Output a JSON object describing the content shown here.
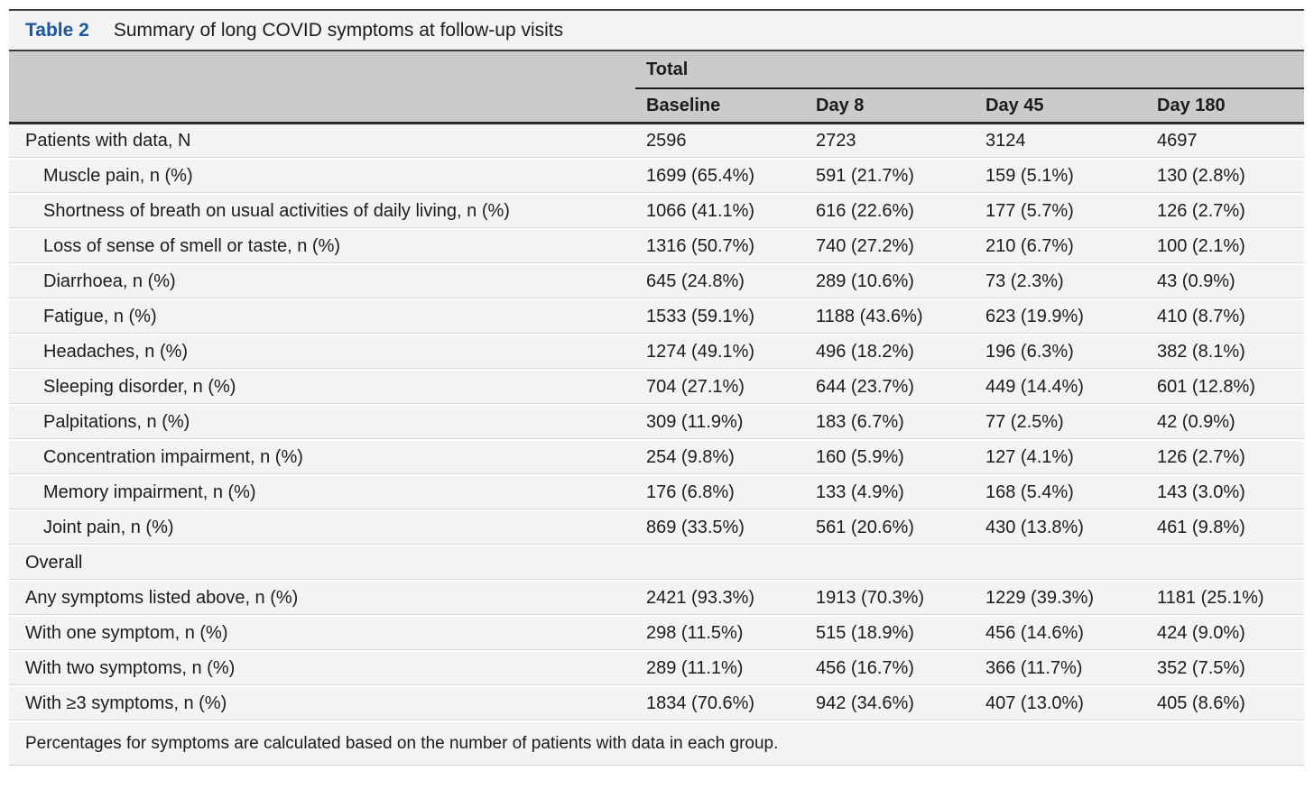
{
  "table": {
    "caption": {
      "label": "Table 2",
      "title": "Summary of long COVID symptoms at follow-up visits"
    },
    "header": {
      "group_label": "Total",
      "columns": [
        "Baseline",
        "Day 8",
        "Day 45",
        "Day 180"
      ]
    },
    "rows": [
      {
        "label": "Patients with data, N",
        "indent": false,
        "section": false,
        "values": [
          "2596",
          "2723",
          "3124",
          "4697"
        ]
      },
      {
        "label": "Muscle pain, n (%)",
        "indent": true,
        "section": false,
        "values": [
          "1699 (65.4%)",
          "591 (21.7%)",
          "159 (5.1%)",
          "130 (2.8%)"
        ]
      },
      {
        "label": "Shortness of breath on usual activities of daily living, n (%)",
        "indent": true,
        "section": false,
        "values": [
          "1066 (41.1%)",
          "616 (22.6%)",
          "177 (5.7%)",
          "126 (2.7%)"
        ]
      },
      {
        "label": "Loss of sense of smell or taste, n (%)",
        "indent": true,
        "section": false,
        "values": [
          "1316 (50.7%)",
          "740 (27.2%)",
          "210 (6.7%)",
          "100 (2.1%)"
        ]
      },
      {
        "label": "Diarrhoea, n (%)",
        "indent": true,
        "section": false,
        "values": [
          "645 (24.8%)",
          "289 (10.6%)",
          "73 (2.3%)",
          "43 (0.9%)"
        ]
      },
      {
        "label": "Fatigue, n (%)",
        "indent": true,
        "section": false,
        "values": [
          "1533 (59.1%)",
          "1188 (43.6%)",
          "623 (19.9%)",
          "410 (8.7%)"
        ]
      },
      {
        "label": "Headaches, n (%)",
        "indent": true,
        "section": false,
        "values": [
          "1274 (49.1%)",
          "496 (18.2%)",
          "196 (6.3%)",
          "382 (8.1%)"
        ]
      },
      {
        "label": "Sleeping disorder, n (%)",
        "indent": true,
        "section": false,
        "values": [
          "704 (27.1%)",
          "644 (23.7%)",
          "449 (14.4%)",
          "601 (12.8%)"
        ]
      },
      {
        "label": "Palpitations, n (%)",
        "indent": true,
        "section": false,
        "values": [
          "309 (11.9%)",
          "183 (6.7%)",
          "77 (2.5%)",
          "42 (0.9%)"
        ]
      },
      {
        "label": "Concentration impairment, n (%)",
        "indent": true,
        "section": false,
        "values": [
          "254 (9.8%)",
          "160 (5.9%)",
          "127 (4.1%)",
          "126 (2.7%)"
        ]
      },
      {
        "label": "Memory impairment, n (%)",
        "indent": true,
        "section": false,
        "values": [
          "176 (6.8%)",
          "133 (4.9%)",
          "168 (5.4%)",
          "143 (3.0%)"
        ]
      },
      {
        "label": "Joint pain, n (%)",
        "indent": true,
        "section": false,
        "values": [
          "869 (33.5%)",
          "561 (20.6%)",
          "430 (13.8%)",
          "461 (9.8%)"
        ]
      },
      {
        "label": "Overall",
        "indent": false,
        "section": true,
        "values": []
      },
      {
        "label": "Any symptoms listed above, n (%)",
        "indent": false,
        "section": false,
        "values": [
          "2421 (93.3%)",
          "1913 (70.3%)",
          "1229 (39.3%)",
          "1181 (25.1%)"
        ]
      },
      {
        "label": "With one symptom, n (%)",
        "indent": false,
        "section": false,
        "values": [
          "298 (11.5%)",
          "515 (18.9%)",
          "456 (14.6%)",
          "424 (9.0%)"
        ]
      },
      {
        "label": "With two symptoms, n (%)",
        "indent": false,
        "section": false,
        "values": [
          "289 (11.1%)",
          "456 (16.7%)",
          "366 (11.7%)",
          "352 (7.5%)"
        ]
      },
      {
        "label": "With ≥3 symptoms, n (%)",
        "indent": false,
        "section": false,
        "values": [
          "1834 (70.6%)",
          "942 (34.6%)",
          "407 (13.0%)",
          "405 (8.6%)"
        ]
      }
    ],
    "footnote": "Percentages for symptoms are calculated based on the number of patients with data in each group."
  },
  "colors": {
    "accent_blue": "#1b579f",
    "header_bg": "#cbcbcb",
    "row_bg": "#f3f3f3",
    "rule_dark": "#3b3b3b"
  }
}
